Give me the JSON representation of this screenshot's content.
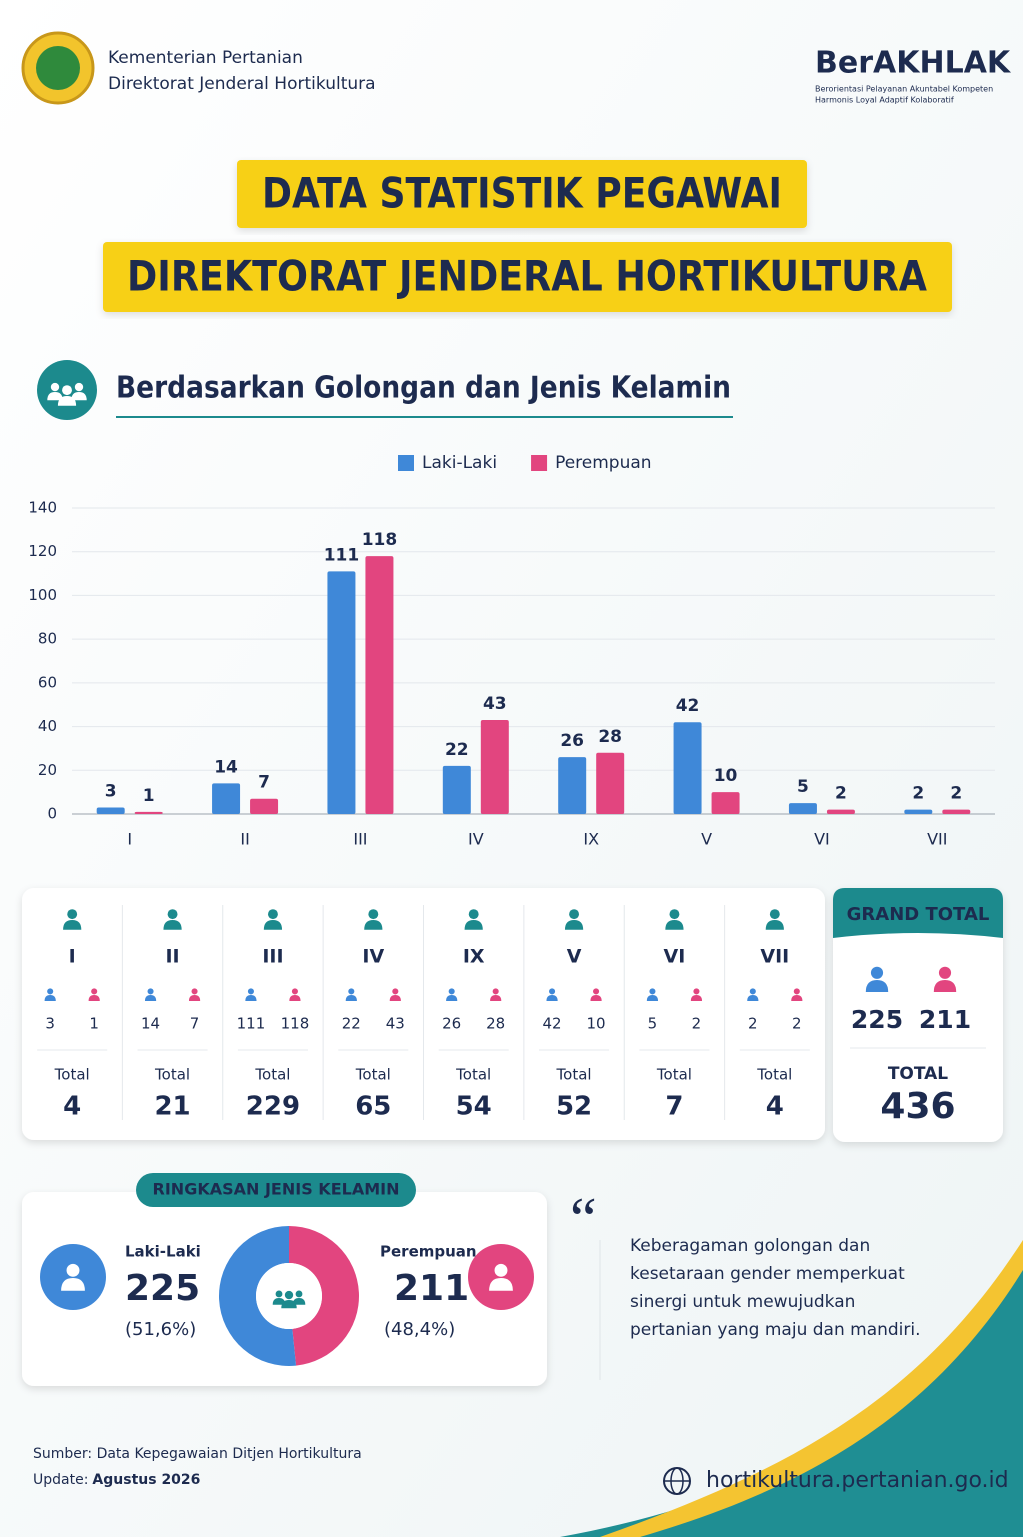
{
  "header": {
    "org_line1": "Kementerian Pertanian",
    "org_line2": "Direktorat Jenderal Hortikultura",
    "brand": "BerAKHLAK",
    "brand_tagline_1": "Berorientasi Pelayanan Akuntabel Kompeten",
    "brand_tagline_2": "Harmonis Loyal Adaptif Kolaboratif"
  },
  "title": {
    "line1": "DATA STATISTIK PEGAWAI",
    "line2": "DIREKTORAT JENDERAL HORTIKULTURA"
  },
  "section_title": "Berdasarkan Golongan dan Jenis Kelamin",
  "chart_data": {
    "type": "bar",
    "categories": [
      "I",
      "II",
      "III",
      "IV",
      "IX",
      "V",
      "VI",
      "VII"
    ],
    "series": [
      {
        "name": "Laki-Laki",
        "color": "#3f88d8",
        "values": [
          3,
          14,
          111,
          22,
          26,
          42,
          5,
          2
        ]
      },
      {
        "name": "Perempuan",
        "color": "#e2457f",
        "values": [
          1,
          7,
          118,
          43,
          28,
          10,
          2,
          2
        ]
      }
    ],
    "ylim": [
      0,
      140
    ],
    "yticks": [
      0,
      20,
      40,
      60,
      80,
      100,
      120,
      140
    ],
    "grid": true,
    "legend": "top"
  },
  "cards": [
    {
      "label": "I",
      "male": 3,
      "female": 1,
      "total_label": "Total",
      "total": 4
    },
    {
      "label": "II",
      "male": 14,
      "female": 7,
      "total_label": "Total",
      "total": 21
    },
    {
      "label": "III",
      "male": 111,
      "female": 118,
      "total_label": "Total",
      "total": 229
    },
    {
      "label": "IV",
      "male": 22,
      "female": 43,
      "total_label": "Total",
      "total": 65
    },
    {
      "label": "IX",
      "male": 26,
      "female": 28,
      "total_label": "Total",
      "total": 54
    },
    {
      "label": "V",
      "male": 42,
      "female": 10,
      "total_label": "Total",
      "total": 52
    },
    {
      "label": "VI",
      "male": 5,
      "female": 2,
      "total_label": "Total",
      "total": 7
    },
    {
      "label": "VII",
      "male": 2,
      "female": 2,
      "total_label": "Total",
      "total": 4
    }
  ],
  "grand_total": {
    "title": "GRAND TOTAL",
    "male": 225,
    "female": 211,
    "total_label": "TOTAL",
    "total": 436
  },
  "gender_summary": {
    "title": "RINGKASAN JENIS KELAMIN",
    "male": {
      "label": "Laki-Laki",
      "value": 225,
      "percent": "(51,6%)"
    },
    "female": {
      "label": "Perempuan",
      "value": 211,
      "percent": "(48,4%)"
    }
  },
  "quote_lines": [
    "Keberagaman golongan dan",
    "kesetaraan gender memperkuat",
    "sinergi untuk mewujudkan",
    "pertanian yang maju dan mandiri."
  ],
  "footer": {
    "source": "Sumber: Data Kepegawaian Ditjen Hortikultura",
    "update_label": "Update:",
    "update_value": "Agustus 2026",
    "website": "hortikultura.pertanian.go.id"
  }
}
